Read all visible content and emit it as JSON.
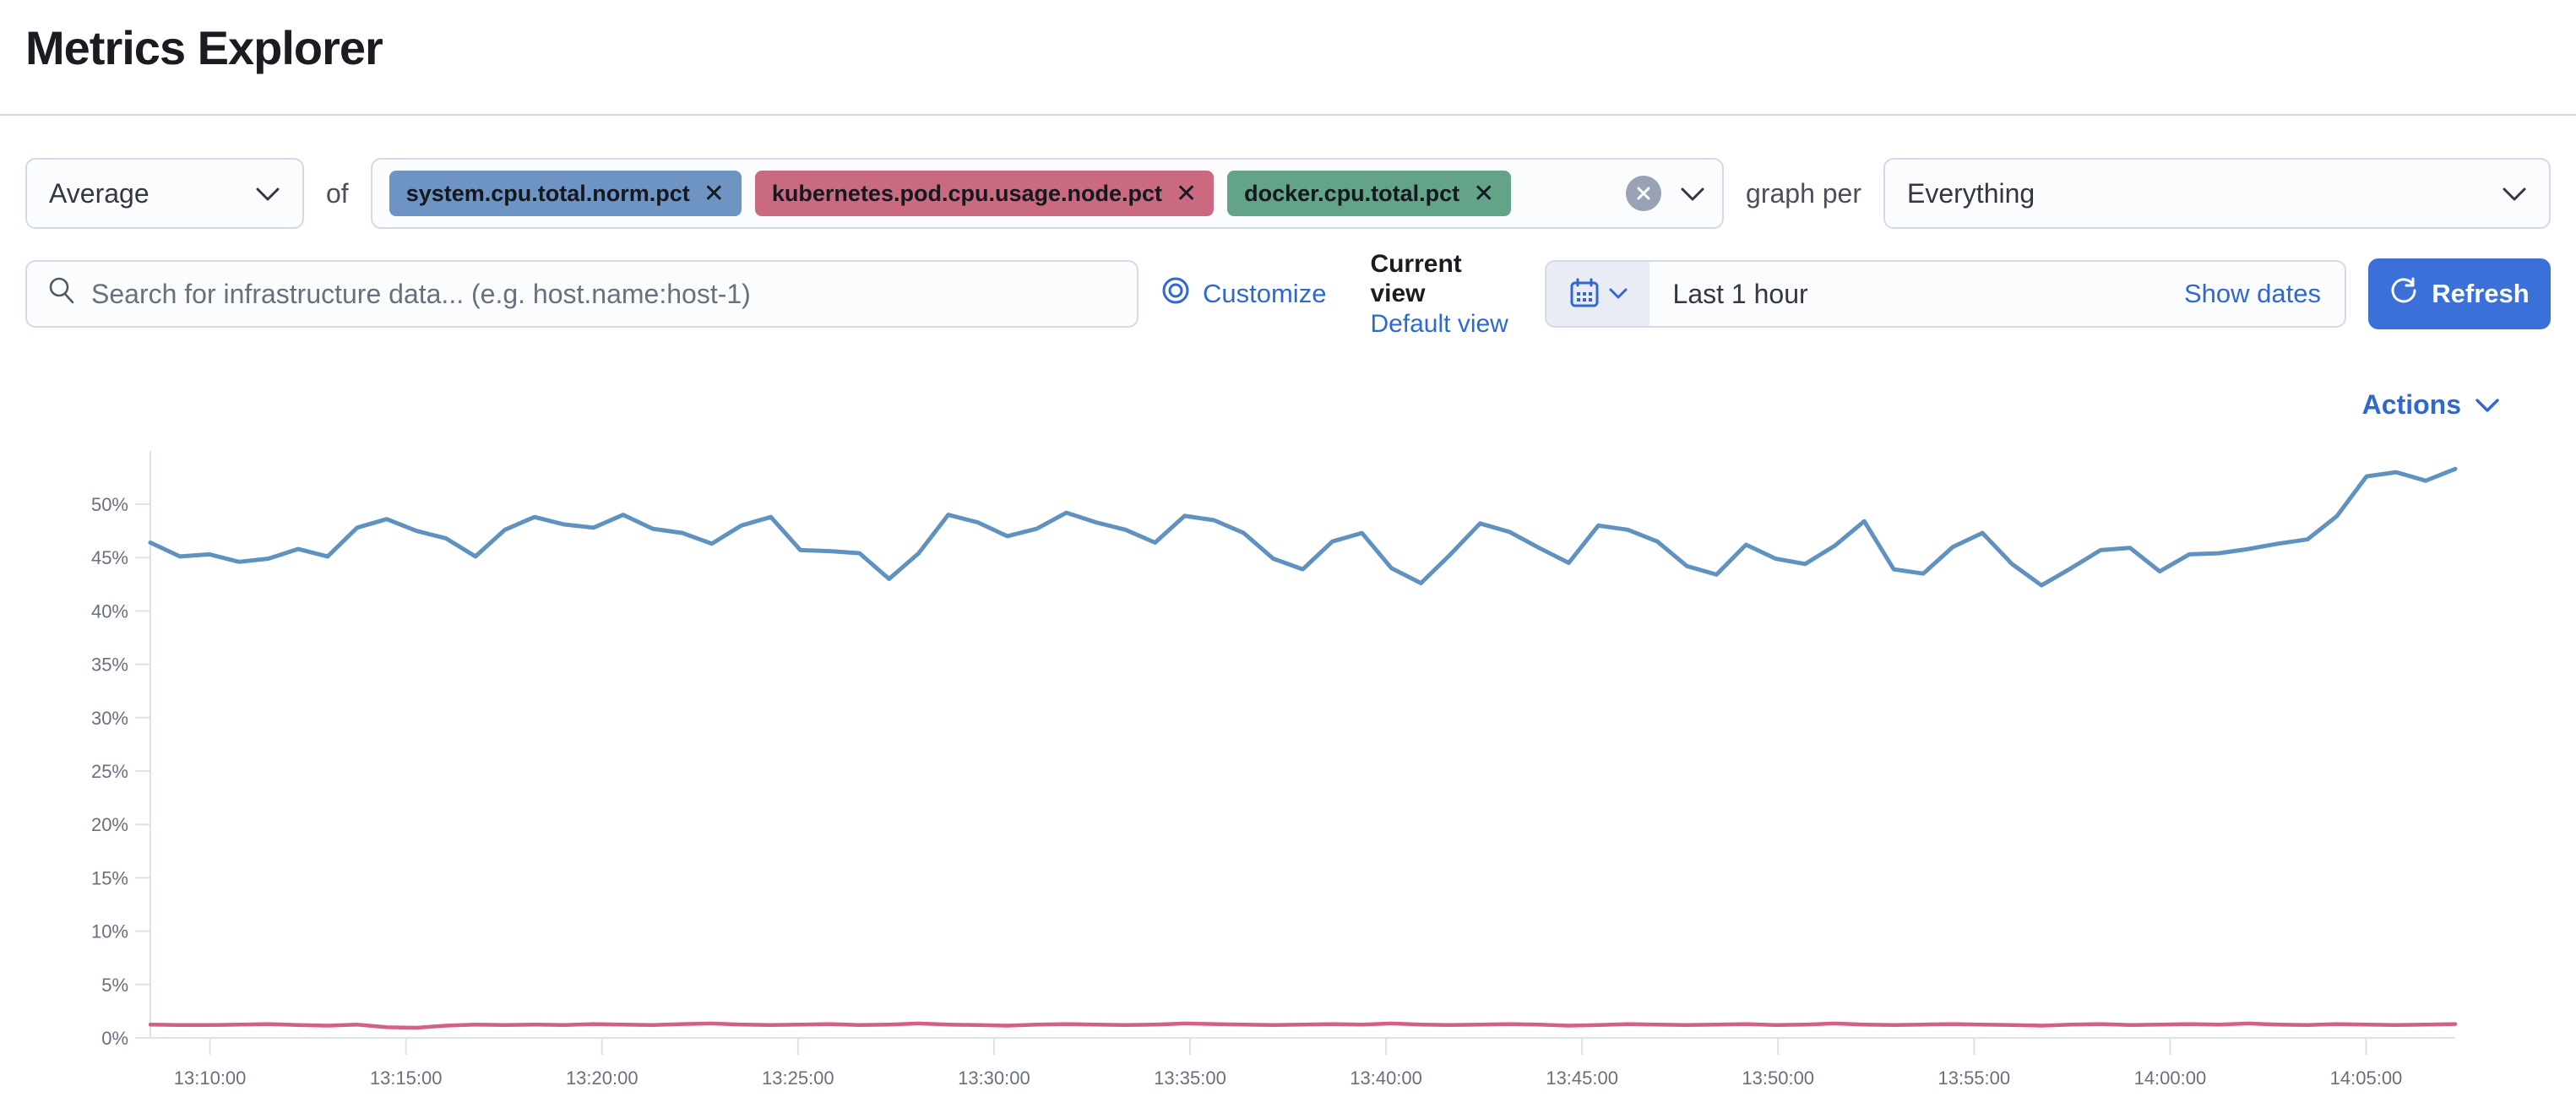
{
  "page": {
    "title": "Metrics Explorer"
  },
  "toolbar": {
    "aggregation": {
      "value": "Average"
    },
    "of_label": "of",
    "metrics": [
      {
        "label": "system.cpu.total.norm.pct",
        "remove": "✕",
        "color": "#6d94c2"
      },
      {
        "label": "kubernetes.pod.cpu.usage.node.pct",
        "remove": "✕",
        "color": "#c96a80"
      },
      {
        "label": "docker.cpu.total.pct",
        "remove": "✕",
        "color": "#63a489"
      }
    ],
    "clear_label": "✕",
    "graph_per_label": "graph per",
    "group_by": {
      "value": "Everything"
    }
  },
  "search": {
    "placeholder": "Search for infrastructure data... (e.g. host.name:host-1)"
  },
  "view_controls": {
    "customize_label": "Customize",
    "current_view_label": "Current view",
    "default_view_label": "Default view"
  },
  "time_picker": {
    "value": "Last 1 hour",
    "show_dates_label": "Show dates",
    "refresh_label": "Refresh"
  },
  "actions_label": "Actions",
  "chart_data": {
    "type": "line",
    "title": "",
    "xlabel": "",
    "ylabel": "",
    "unit": "%",
    "ylim": [
      0,
      55
    ],
    "grid": "axis ticks only, no in-plot gridlines",
    "legend": "none",
    "y_tick_labels": [
      "0%",
      "5%",
      "10%",
      "15%",
      "20%",
      "25%",
      "30%",
      "35%",
      "40%",
      "45%",
      "50%"
    ],
    "x_tick_labels": [
      "13:10:00",
      "13:15:00",
      "13:20:00",
      "13:25:00",
      "13:30:00",
      "13:35:00",
      "13:40:00",
      "13:45:00",
      "13:50:00",
      "13:55:00",
      "14:00:00",
      "14:05:00"
    ],
    "x_tick_interval": "5 minutes",
    "series": [
      {
        "name": "Average system.cpu.total.norm.pct",
        "color": "#6092c0",
        "values": [
          46.4,
          45.1,
          45.3,
          44.6,
          44.9,
          45.8,
          45.1,
          47.8,
          48.6,
          47.5,
          46.8,
          45.1,
          47.6,
          48.8,
          48.1,
          47.8,
          49.0,
          47.7,
          47.3,
          46.3,
          48.0,
          48.8,
          45.7,
          45.6,
          45.4,
          43.0,
          45.4,
          49.0,
          48.3,
          47.0,
          47.7,
          49.2,
          48.3,
          47.6,
          46.4,
          48.9,
          48.5,
          47.3,
          44.9,
          43.9,
          46.5,
          47.3,
          44.0,
          42.6,
          45.3,
          48.2,
          47.4,
          45.9,
          44.5,
          48.0,
          47.6,
          46.5,
          44.2,
          43.4,
          46.2,
          44.9,
          44.4,
          46.1,
          48.4,
          43.9,
          43.5,
          46.0,
          47.3,
          44.4,
          42.4,
          44.0,
          45.7,
          45.9,
          43.7,
          45.3,
          45.4,
          45.8,
          46.3,
          46.7,
          48.9,
          52.6,
          53.0,
          52.2,
          53.3
        ]
      },
      {
        "name": "Average kubernetes.pod.cpu.usage.node.pct",
        "color": "#d36086",
        "values": [
          1.25,
          1.2,
          1.2,
          1.25,
          1.3,
          1.2,
          1.15,
          1.25,
          1.0,
          0.95,
          1.15,
          1.25,
          1.2,
          1.25,
          1.2,
          1.3,
          1.25,
          1.2,
          1.3,
          1.35,
          1.25,
          1.2,
          1.25,
          1.3,
          1.2,
          1.25,
          1.35,
          1.25,
          1.2,
          1.15,
          1.25,
          1.3,
          1.25,
          1.2,
          1.25,
          1.35,
          1.3,
          1.25,
          1.2,
          1.25,
          1.3,
          1.25,
          1.35,
          1.25,
          1.2,
          1.25,
          1.3,
          1.25,
          1.15,
          1.2,
          1.3,
          1.25,
          1.2,
          1.25,
          1.3,
          1.2,
          1.25,
          1.35,
          1.25,
          1.2,
          1.25,
          1.3,
          1.25,
          1.2,
          1.15,
          1.25,
          1.3,
          1.2,
          1.25,
          1.3,
          1.25,
          1.35,
          1.25,
          1.2,
          1.3,
          1.25,
          1.2,
          1.25,
          1.3
        ]
      }
    ]
  }
}
